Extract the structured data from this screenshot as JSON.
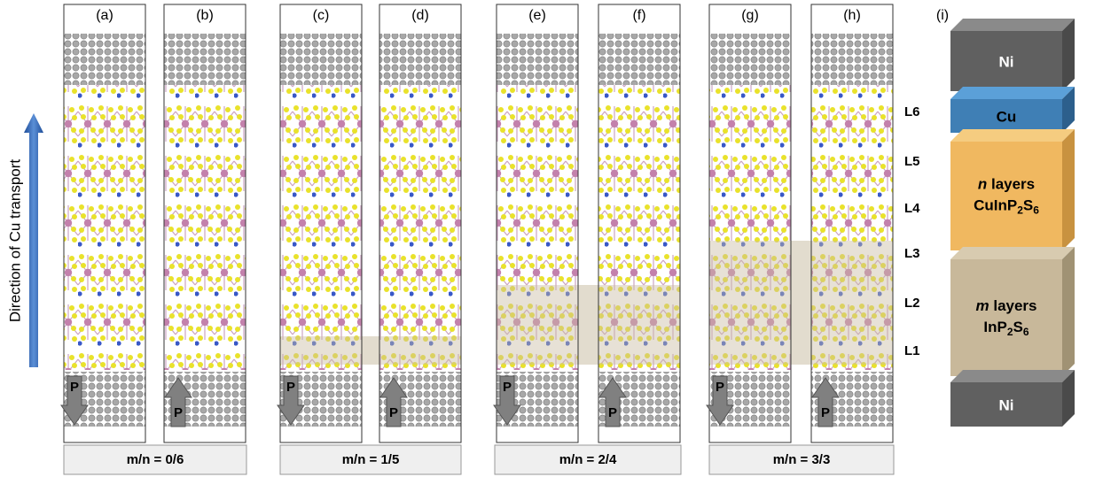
{
  "panels": [
    {
      "label": "(a)",
      "arrow": "P"
    },
    {
      "label": "(b)",
      "arrow": "P"
    },
    {
      "label": "(c)",
      "arrow": "P"
    },
    {
      "label": "(d)",
      "arrow": "P"
    },
    {
      "label": "(e)",
      "arrow": "P"
    },
    {
      "label": "(f)",
      "arrow": "P"
    },
    {
      "label": "(g)",
      "arrow": "P"
    },
    {
      "label": "(h)",
      "arrow": "P"
    }
  ],
  "axis_label": "Direction of Cu transport",
  "layers": [
    "L6",
    "L5",
    "L4",
    "L3",
    "L2",
    "L1"
  ],
  "groups": [
    "m/n = 0/6",
    "m/n = 1/5",
    "m/n = 2/4",
    "m/n = 3/3"
  ],
  "stack": {
    "label": "(i)",
    "blocks": [
      {
        "label": "Ni"
      },
      {
        "label": "Cu"
      },
      {
        "var": "n",
        "text": "layers",
        "formula": [
          "CuInP",
          "2",
          "S",
          "6"
        ]
      },
      {
        "var": "m",
        "text": "layers",
        "formula": [
          "InP",
          "2",
          "S",
          "6"
        ]
      },
      {
        "label": "Ni"
      }
    ]
  }
}
